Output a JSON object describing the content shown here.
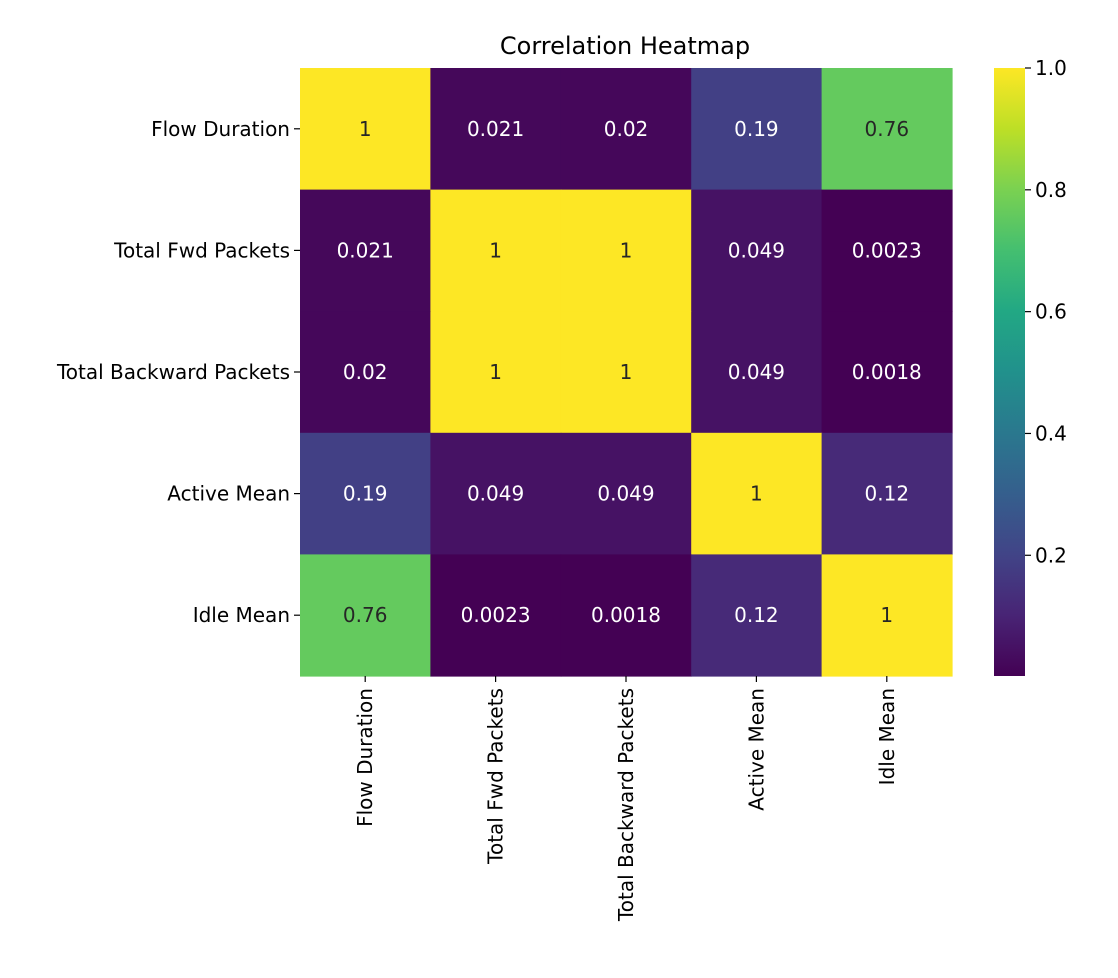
{
  "chart_data": {
    "type": "heatmap",
    "title": "Correlation Heatmap",
    "rows": [
      "Flow Duration",
      "Total Fwd Packets",
      "Total Backward Packets",
      "Active Mean",
      "Idle Mean"
    ],
    "columns": [
      "Flow Duration",
      "Total Fwd Packets",
      "Total Backward Packets",
      "Active Mean",
      "Idle Mean"
    ],
    "values": [
      [
        1,
        0.021,
        0.02,
        0.19,
        0.76
      ],
      [
        0.021,
        1,
        1,
        0.049,
        0.0023
      ],
      [
        0.02,
        1,
        1,
        0.049,
        0.0018
      ],
      [
        0.19,
        0.049,
        0.049,
        1,
        0.12
      ],
      [
        0.76,
        0.0023,
        0.0018,
        0.12,
        1
      ]
    ],
    "annotations": [
      [
        "1",
        "0.021",
        "0.02",
        "0.19",
        "0.76"
      ],
      [
        "0.021",
        "1",
        "1",
        "0.049",
        "0.0023"
      ],
      [
        "0.02",
        "1",
        "1",
        "0.049",
        "0.0018"
      ],
      [
        "0.19",
        "0.049",
        "0.049",
        "1",
        "0.12"
      ],
      [
        "0.76",
        "0.0023",
        "0.0018",
        "0.12",
        "1"
      ]
    ],
    "colormap": "viridis",
    "colorbar": {
      "min": 0.0018,
      "max": 1.0,
      "ticks": [
        0.2,
        0.4,
        0.6,
        0.8,
        1.0
      ],
      "tick_labels": [
        "0.2",
        "0.4",
        "0.6",
        "0.8",
        "1.0"
      ]
    },
    "legend_placement": "right",
    "grid": false
  }
}
